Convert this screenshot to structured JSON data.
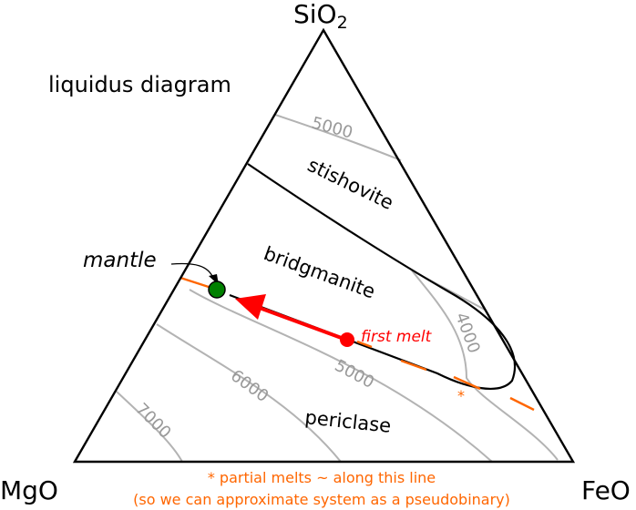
{
  "vertices": {
    "top": "SiO",
    "top_sub": "2",
    "left": "MgO",
    "right": "FeO"
  },
  "title": "liquidus diagram",
  "fields": {
    "stishovite": "stishovite",
    "bridgmanite": "bridgmanite",
    "periclase": "periclase"
  },
  "isotherms": {
    "t5000_top": "5000",
    "t4000": "4000",
    "t5000_low": "5000",
    "t6000": "6000",
    "t7000": "7000"
  },
  "annotations": {
    "mantle": "mantle",
    "first_melt": "first melt",
    "asterisk": "*",
    "note_line1": "* partial melts ~ along this line",
    "note_line2": "(so we can approximate system as a pseudobinary)"
  },
  "colors": {
    "isotherm": "#b3b3b3",
    "path": "#ff0000",
    "partial_melt": "#ff6600",
    "mantle": "#008000",
    "boundary": "#000000"
  }
}
